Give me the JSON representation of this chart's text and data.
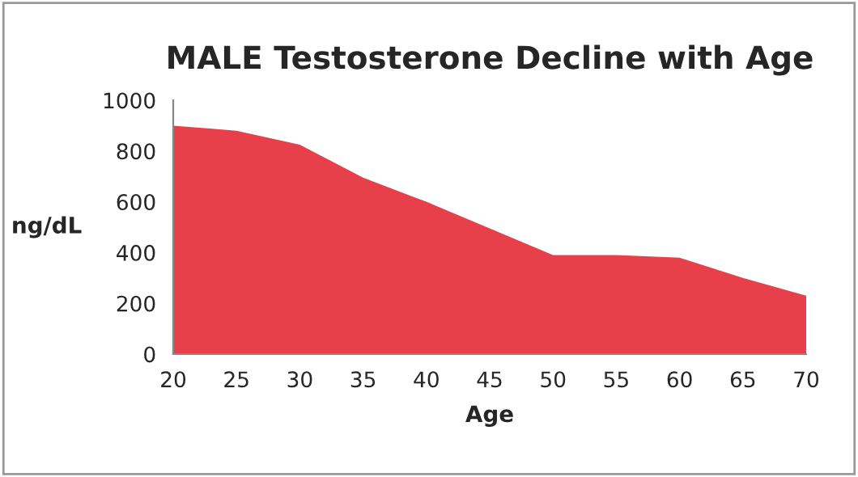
{
  "chart_data": {
    "type": "area",
    "title": "MALE Testosterone Decline with Age",
    "xlabel": "Age",
    "ylabel": "ng/dL",
    "x": [
      20,
      25,
      30,
      35,
      40,
      45,
      50,
      55,
      60,
      65,
      70
    ],
    "series": [
      {
        "color": "#e8404a",
        "values": [
          900,
          880,
          825,
          695,
          600,
          495,
          390,
          390,
          380,
          300,
          230
        ]
      }
    ],
    "xlim": [
      20,
      70
    ],
    "xticks": [
      20,
      25,
      30,
      35,
      40,
      45,
      50,
      55,
      60,
      65,
      70
    ],
    "ylim": [
      0,
      1000
    ],
    "yticks": [
      0,
      200,
      400,
      600,
      800,
      1000
    ],
    "grid": false,
    "legend": false
  }
}
